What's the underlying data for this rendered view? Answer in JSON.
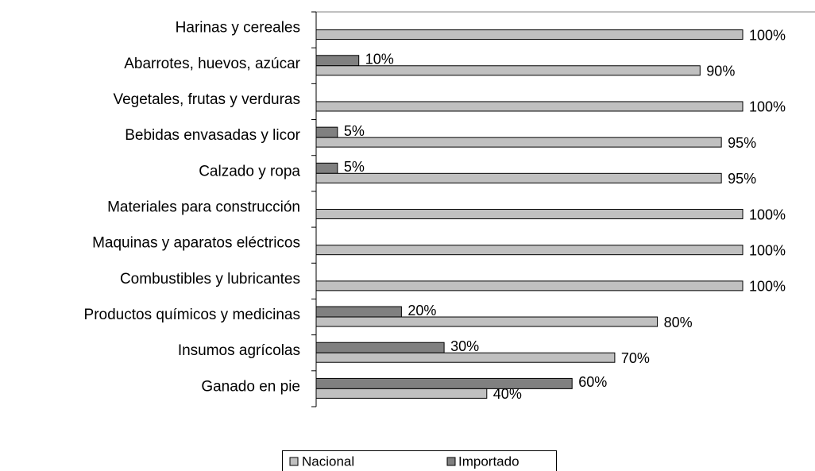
{
  "chart_data": {
    "type": "bar",
    "orientation": "horizontal",
    "categories": [
      "Harinas y cereales",
      "Abarrotes, huevos, azúcar",
      "Vegetales, frutas y verduras",
      "Bebidas envasadas y licor",
      "Calzado y ropa",
      "Materiales para construcción",
      "Maquinas y aparatos eléctricos",
      "Combustibles y lubricantes",
      "Productos químicos y medicinas",
      "Insumos agrícolas",
      "Ganado en pie"
    ],
    "series": [
      {
        "name": "Nacional",
        "color": "#c0c0c0",
        "values": [
          100,
          90,
          100,
          95,
          95,
          100,
          100,
          100,
          80,
          70,
          40
        ],
        "value_labels": [
          "100%",
          "90%",
          "100%",
          "95%",
          "95%",
          "100%",
          "100%",
          "100%",
          "80%",
          "70%",
          "40%"
        ]
      },
      {
        "name": "Importado",
        "color": "#808080",
        "values": [
          null,
          10,
          null,
          5,
          5,
          null,
          null,
          null,
          20,
          30,
          60
        ],
        "value_labels": [
          null,
          "10%",
          null,
          "5%",
          "5%",
          null,
          null,
          null,
          "20%",
          "30%",
          "60%"
        ]
      }
    ],
    "xlim": [
      0,
      100
    ],
    "legend": "bottom"
  }
}
